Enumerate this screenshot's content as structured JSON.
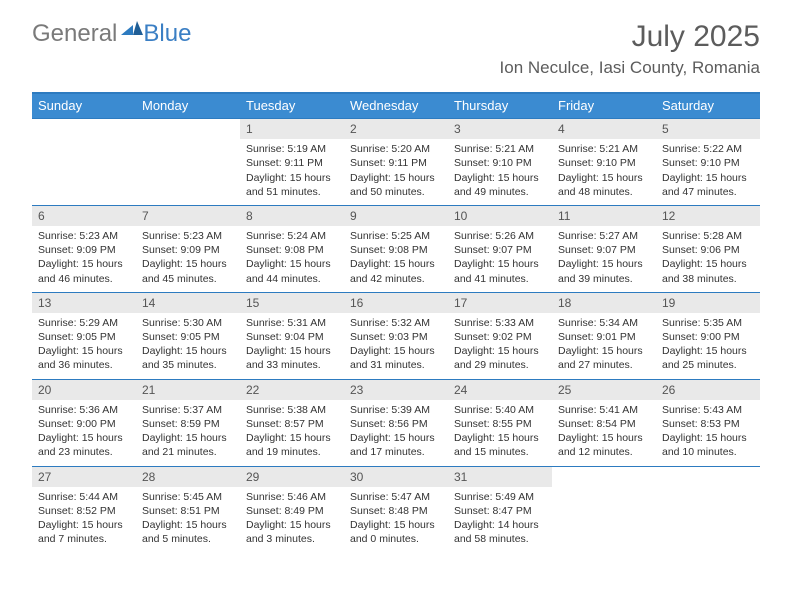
{
  "brand": {
    "word1": "General",
    "word2": "Blue"
  },
  "title": "July 2025",
  "location": "Ion Neculce, Iasi County, Romania",
  "colors": {
    "header_bg": "#3b8bd1",
    "header_border": "#2d7bc0",
    "daynum_bg": "#e9e9e9",
    "text": "#333333",
    "title_text": "#5c5c5c"
  },
  "day_names": [
    "Sunday",
    "Monday",
    "Tuesday",
    "Wednesday",
    "Thursday",
    "Friday",
    "Saturday"
  ],
  "weeks": [
    [
      {
        "n": "",
        "sr": "",
        "ss": "",
        "dl": ""
      },
      {
        "n": "",
        "sr": "",
        "ss": "",
        "dl": ""
      },
      {
        "n": "1",
        "sr": "Sunrise: 5:19 AM",
        "ss": "Sunset: 9:11 PM",
        "dl": "Daylight: 15 hours and 51 minutes."
      },
      {
        "n": "2",
        "sr": "Sunrise: 5:20 AM",
        "ss": "Sunset: 9:11 PM",
        "dl": "Daylight: 15 hours and 50 minutes."
      },
      {
        "n": "3",
        "sr": "Sunrise: 5:21 AM",
        "ss": "Sunset: 9:10 PM",
        "dl": "Daylight: 15 hours and 49 minutes."
      },
      {
        "n": "4",
        "sr": "Sunrise: 5:21 AM",
        "ss": "Sunset: 9:10 PM",
        "dl": "Daylight: 15 hours and 48 minutes."
      },
      {
        "n": "5",
        "sr": "Sunrise: 5:22 AM",
        "ss": "Sunset: 9:10 PM",
        "dl": "Daylight: 15 hours and 47 minutes."
      }
    ],
    [
      {
        "n": "6",
        "sr": "Sunrise: 5:23 AM",
        "ss": "Sunset: 9:09 PM",
        "dl": "Daylight: 15 hours and 46 minutes."
      },
      {
        "n": "7",
        "sr": "Sunrise: 5:23 AM",
        "ss": "Sunset: 9:09 PM",
        "dl": "Daylight: 15 hours and 45 minutes."
      },
      {
        "n": "8",
        "sr": "Sunrise: 5:24 AM",
        "ss": "Sunset: 9:08 PM",
        "dl": "Daylight: 15 hours and 44 minutes."
      },
      {
        "n": "9",
        "sr": "Sunrise: 5:25 AM",
        "ss": "Sunset: 9:08 PM",
        "dl": "Daylight: 15 hours and 42 minutes."
      },
      {
        "n": "10",
        "sr": "Sunrise: 5:26 AM",
        "ss": "Sunset: 9:07 PM",
        "dl": "Daylight: 15 hours and 41 minutes."
      },
      {
        "n": "11",
        "sr": "Sunrise: 5:27 AM",
        "ss": "Sunset: 9:07 PM",
        "dl": "Daylight: 15 hours and 39 minutes."
      },
      {
        "n": "12",
        "sr": "Sunrise: 5:28 AM",
        "ss": "Sunset: 9:06 PM",
        "dl": "Daylight: 15 hours and 38 minutes."
      }
    ],
    [
      {
        "n": "13",
        "sr": "Sunrise: 5:29 AM",
        "ss": "Sunset: 9:05 PM",
        "dl": "Daylight: 15 hours and 36 minutes."
      },
      {
        "n": "14",
        "sr": "Sunrise: 5:30 AM",
        "ss": "Sunset: 9:05 PM",
        "dl": "Daylight: 15 hours and 35 minutes."
      },
      {
        "n": "15",
        "sr": "Sunrise: 5:31 AM",
        "ss": "Sunset: 9:04 PM",
        "dl": "Daylight: 15 hours and 33 minutes."
      },
      {
        "n": "16",
        "sr": "Sunrise: 5:32 AM",
        "ss": "Sunset: 9:03 PM",
        "dl": "Daylight: 15 hours and 31 minutes."
      },
      {
        "n": "17",
        "sr": "Sunrise: 5:33 AM",
        "ss": "Sunset: 9:02 PM",
        "dl": "Daylight: 15 hours and 29 minutes."
      },
      {
        "n": "18",
        "sr": "Sunrise: 5:34 AM",
        "ss": "Sunset: 9:01 PM",
        "dl": "Daylight: 15 hours and 27 minutes."
      },
      {
        "n": "19",
        "sr": "Sunrise: 5:35 AM",
        "ss": "Sunset: 9:00 PM",
        "dl": "Daylight: 15 hours and 25 minutes."
      }
    ],
    [
      {
        "n": "20",
        "sr": "Sunrise: 5:36 AM",
        "ss": "Sunset: 9:00 PM",
        "dl": "Daylight: 15 hours and 23 minutes."
      },
      {
        "n": "21",
        "sr": "Sunrise: 5:37 AM",
        "ss": "Sunset: 8:59 PM",
        "dl": "Daylight: 15 hours and 21 minutes."
      },
      {
        "n": "22",
        "sr": "Sunrise: 5:38 AM",
        "ss": "Sunset: 8:57 PM",
        "dl": "Daylight: 15 hours and 19 minutes."
      },
      {
        "n": "23",
        "sr": "Sunrise: 5:39 AM",
        "ss": "Sunset: 8:56 PM",
        "dl": "Daylight: 15 hours and 17 minutes."
      },
      {
        "n": "24",
        "sr": "Sunrise: 5:40 AM",
        "ss": "Sunset: 8:55 PM",
        "dl": "Daylight: 15 hours and 15 minutes."
      },
      {
        "n": "25",
        "sr": "Sunrise: 5:41 AM",
        "ss": "Sunset: 8:54 PM",
        "dl": "Daylight: 15 hours and 12 minutes."
      },
      {
        "n": "26",
        "sr": "Sunrise: 5:43 AM",
        "ss": "Sunset: 8:53 PM",
        "dl": "Daylight: 15 hours and 10 minutes."
      }
    ],
    [
      {
        "n": "27",
        "sr": "Sunrise: 5:44 AM",
        "ss": "Sunset: 8:52 PM",
        "dl": "Daylight: 15 hours and 7 minutes."
      },
      {
        "n": "28",
        "sr": "Sunrise: 5:45 AM",
        "ss": "Sunset: 8:51 PM",
        "dl": "Daylight: 15 hours and 5 minutes."
      },
      {
        "n": "29",
        "sr": "Sunrise: 5:46 AM",
        "ss": "Sunset: 8:49 PM",
        "dl": "Daylight: 15 hours and 3 minutes."
      },
      {
        "n": "30",
        "sr": "Sunrise: 5:47 AM",
        "ss": "Sunset: 8:48 PM",
        "dl": "Daylight: 15 hours and 0 minutes."
      },
      {
        "n": "31",
        "sr": "Sunrise: 5:49 AM",
        "ss": "Sunset: 8:47 PM",
        "dl": "Daylight: 14 hours and 58 minutes."
      },
      {
        "n": "",
        "sr": "",
        "ss": "",
        "dl": ""
      },
      {
        "n": "",
        "sr": "",
        "ss": "",
        "dl": ""
      }
    ]
  ]
}
